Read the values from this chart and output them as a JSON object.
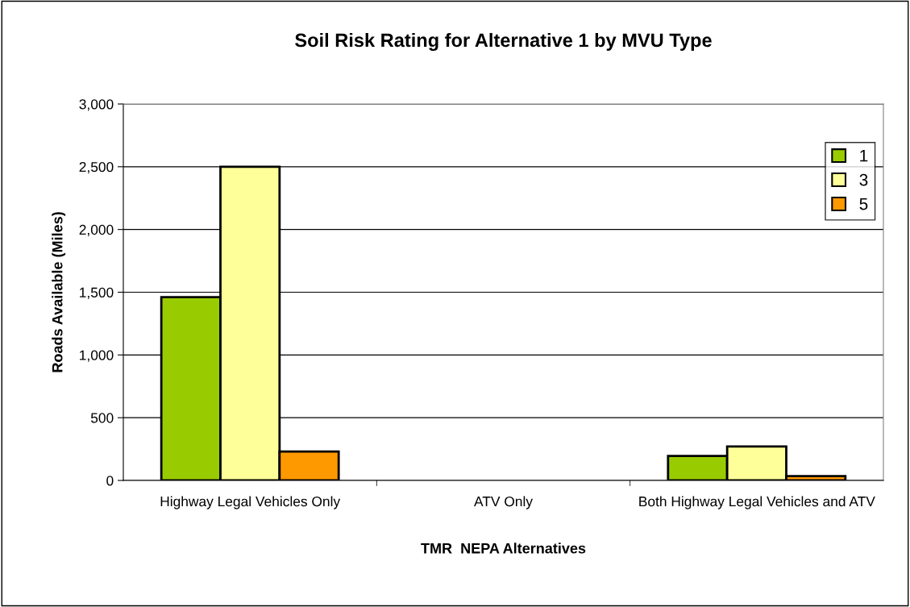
{
  "chart_data": {
    "type": "bar",
    "title": "Soil Risk Rating for Alternative 1 by MVU Type",
    "xlabel": "TMR  NEPA Alternatives",
    "ylabel": "Roads Available (Miles)",
    "categories": [
      "Highway Legal Vehicles Only",
      "ATV Only",
      "Both Highway Legal Vehicles and ATV"
    ],
    "series": [
      {
        "name": "1",
        "color": "#99cc00",
        "values": [
          1460,
          null,
          195
        ]
      },
      {
        "name": "3",
        "color": "#ffff99",
        "values": [
          2500,
          null,
          270
        ]
      },
      {
        "name": "5",
        "color": "#ff9900",
        "values": [
          230,
          null,
          35
        ]
      }
    ],
    "ylim": [
      0,
      3000
    ],
    "yticks": [
      {
        "value": 0,
        "label": "0"
      },
      {
        "value": 500,
        "label": "500"
      },
      {
        "value": 1000,
        "label": "1,000"
      },
      {
        "value": 1500,
        "label": "1,500"
      },
      {
        "value": 2000,
        "label": "2,000"
      },
      {
        "value": 2500,
        "label": "2,500"
      },
      {
        "value": 3000,
        "label": "3,000"
      }
    ],
    "grid": "y",
    "legend": "top right"
  }
}
